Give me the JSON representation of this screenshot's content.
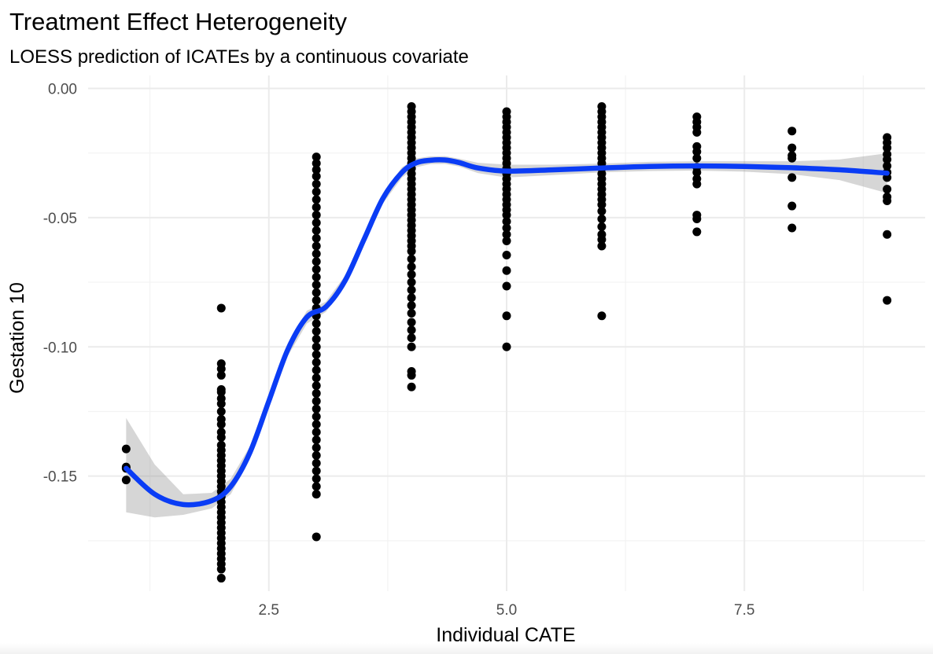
{
  "chart_data": {
    "type": "scatter",
    "title": "Treatment Effect Heterogeneity",
    "subtitle": "LOESS prediction of ICATEs by a continuous covariate",
    "xlabel": "Individual CATE",
    "ylabel": "Gestation 10",
    "xlim": [
      0.6,
      9.4
    ],
    "ylim": [
      -0.1945,
      0.005
    ],
    "x_ticks": [
      2.5,
      5.0,
      7.5
    ],
    "x_tick_labels": [
      "2.5",
      "5.0",
      "7.5"
    ],
    "y_ticks": [
      0.0,
      -0.05,
      -0.1,
      -0.15
    ],
    "y_tick_labels": [
      "0.00",
      "-0.05",
      "-0.10",
      "-0.15"
    ],
    "grid": true,
    "smooth_color": "#0a3cf5",
    "point_color": "#000000",
    "points": [
      {
        "x": 1,
        "y": [
          -0.1395,
          -0.1465,
          -0.147,
          -0.1515
        ]
      },
      {
        "x": 2,
        "y": [
          -0.085,
          -0.1065,
          -0.1085,
          -0.111,
          -0.1165,
          -0.1175,
          -0.12,
          -0.122,
          -0.125,
          -0.128,
          -0.13,
          -0.133,
          -0.135,
          -0.138,
          -0.14,
          -0.142,
          -0.144,
          -0.146,
          -0.148,
          -0.15,
          -0.152,
          -0.154,
          -0.156,
          -0.158,
          -0.16,
          -0.162,
          -0.164,
          -0.166,
          -0.168,
          -0.17,
          -0.172,
          -0.174,
          -0.176,
          -0.178,
          -0.18,
          -0.182,
          -0.184,
          -0.186,
          -0.1895
        ]
      },
      {
        "x": 3,
        "y": [
          -0.0265,
          -0.029,
          -0.0315,
          -0.034,
          -0.037,
          -0.04,
          -0.043,
          -0.046,
          -0.049,
          -0.052,
          -0.055,
          -0.058,
          -0.061,
          -0.064,
          -0.067,
          -0.07,
          -0.073,
          -0.076,
          -0.079,
          -0.082,
          -0.085,
          -0.088,
          -0.091,
          -0.094,
          -0.097,
          -0.1,
          -0.103,
          -0.106,
          -0.109,
          -0.112,
          -0.115,
          -0.118,
          -0.121,
          -0.124,
          -0.127,
          -0.13,
          -0.133,
          -0.136,
          -0.139,
          -0.142,
          -0.145,
          -0.148,
          -0.151,
          -0.154,
          -0.157,
          -0.1735
        ]
      },
      {
        "x": 4,
        "y": [
          -0.007,
          -0.009,
          -0.011,
          -0.013,
          -0.015,
          -0.017,
          -0.019,
          -0.021,
          -0.023,
          -0.025,
          -0.027,
          -0.029,
          -0.031,
          -0.033,
          -0.035,
          -0.037,
          -0.039,
          -0.041,
          -0.043,
          -0.045,
          -0.047,
          -0.049,
          -0.051,
          -0.053,
          -0.055,
          -0.057,
          -0.059,
          -0.061,
          -0.063,
          -0.066,
          -0.069,
          -0.072,
          -0.075,
          -0.078,
          -0.081,
          -0.084,
          -0.087,
          -0.0905,
          -0.0935,
          -0.0965,
          -0.1,
          -0.1095,
          -0.111,
          -0.1155
        ]
      },
      {
        "x": 5,
        "y": [
          -0.009,
          -0.011,
          -0.013,
          -0.015,
          -0.017,
          -0.019,
          -0.021,
          -0.023,
          -0.025,
          -0.027,
          -0.029,
          -0.031,
          -0.033,
          -0.035,
          -0.037,
          -0.039,
          -0.041,
          -0.043,
          -0.045,
          -0.047,
          -0.049,
          -0.0515,
          -0.054,
          -0.0565,
          -0.059,
          -0.0645,
          -0.0705,
          -0.0765,
          -0.088,
          -0.1
        ]
      },
      {
        "x": 6,
        "y": [
          -0.007,
          -0.009,
          -0.011,
          -0.013,
          -0.015,
          -0.017,
          -0.019,
          -0.021,
          -0.023,
          -0.025,
          -0.027,
          -0.029,
          -0.031,
          -0.033,
          -0.035,
          -0.037,
          -0.039,
          -0.041,
          -0.043,
          -0.045,
          -0.0475,
          -0.0505,
          -0.0535,
          -0.0565,
          -0.0585,
          -0.061,
          -0.088
        ]
      },
      {
        "x": 7,
        "y": [
          -0.011,
          -0.013,
          -0.015,
          -0.017,
          -0.0225,
          -0.0245,
          -0.027,
          -0.0305,
          -0.0325,
          -0.035,
          -0.037,
          -0.049,
          -0.0505,
          -0.0555
        ]
      },
      {
        "x": 8,
        "y": [
          -0.0165,
          -0.023,
          -0.026,
          -0.027,
          -0.0345,
          -0.0455,
          -0.054
        ]
      },
      {
        "x": 9,
        "y": [
          -0.019,
          -0.021,
          -0.023,
          -0.0255,
          -0.0275,
          -0.03,
          -0.0325,
          -0.0345,
          -0.039,
          -0.042,
          -0.0435,
          -0.0565,
          -0.082
        ]
      }
    ],
    "smooth": {
      "method": "LOESS",
      "x": [
        1.0,
        1.3,
        1.6,
        1.9,
        2.1,
        2.3,
        2.5,
        2.7,
        2.9,
        3.1,
        3.3,
        3.5,
        3.7,
        3.9,
        4.05,
        4.2,
        4.35,
        4.5,
        4.7,
        5.0,
        5.5,
        6.0,
        6.5,
        7.0,
        7.5,
        8.0,
        8.5,
        9.0
      ],
      "y": [
        -0.147,
        -0.157,
        -0.161,
        -0.1595,
        -0.154,
        -0.141,
        -0.121,
        -0.101,
        -0.0885,
        -0.0845,
        -0.0745,
        -0.0585,
        -0.0425,
        -0.0325,
        -0.0288,
        -0.0278,
        -0.0277,
        -0.0287,
        -0.0308,
        -0.032,
        -0.0315,
        -0.0308,
        -0.0302,
        -0.03,
        -0.0302,
        -0.0307,
        -0.0315,
        -0.0328
      ],
      "ci_lower": [
        -0.164,
        -0.166,
        -0.165,
        -0.1625,
        -0.157,
        -0.1435,
        -0.1235,
        -0.1035,
        -0.091,
        -0.0865,
        -0.0765,
        -0.0605,
        -0.0445,
        -0.0345,
        -0.0305,
        -0.0293,
        -0.0292,
        -0.0302,
        -0.0328,
        -0.0345,
        -0.0335,
        -0.0325,
        -0.032,
        -0.0318,
        -0.0322,
        -0.0332,
        -0.0355,
        -0.0405
      ],
      "ci_upper": [
        -0.1275,
        -0.1455,
        -0.157,
        -0.1565,
        -0.151,
        -0.1385,
        -0.1185,
        -0.0985,
        -0.086,
        -0.0825,
        -0.0725,
        -0.0565,
        -0.0405,
        -0.0305,
        -0.0271,
        -0.0263,
        -0.0262,
        -0.0272,
        -0.0288,
        -0.0295,
        -0.0295,
        -0.0291,
        -0.0284,
        -0.0282,
        -0.0282,
        -0.0282,
        -0.0275,
        -0.0251
      ]
    }
  }
}
